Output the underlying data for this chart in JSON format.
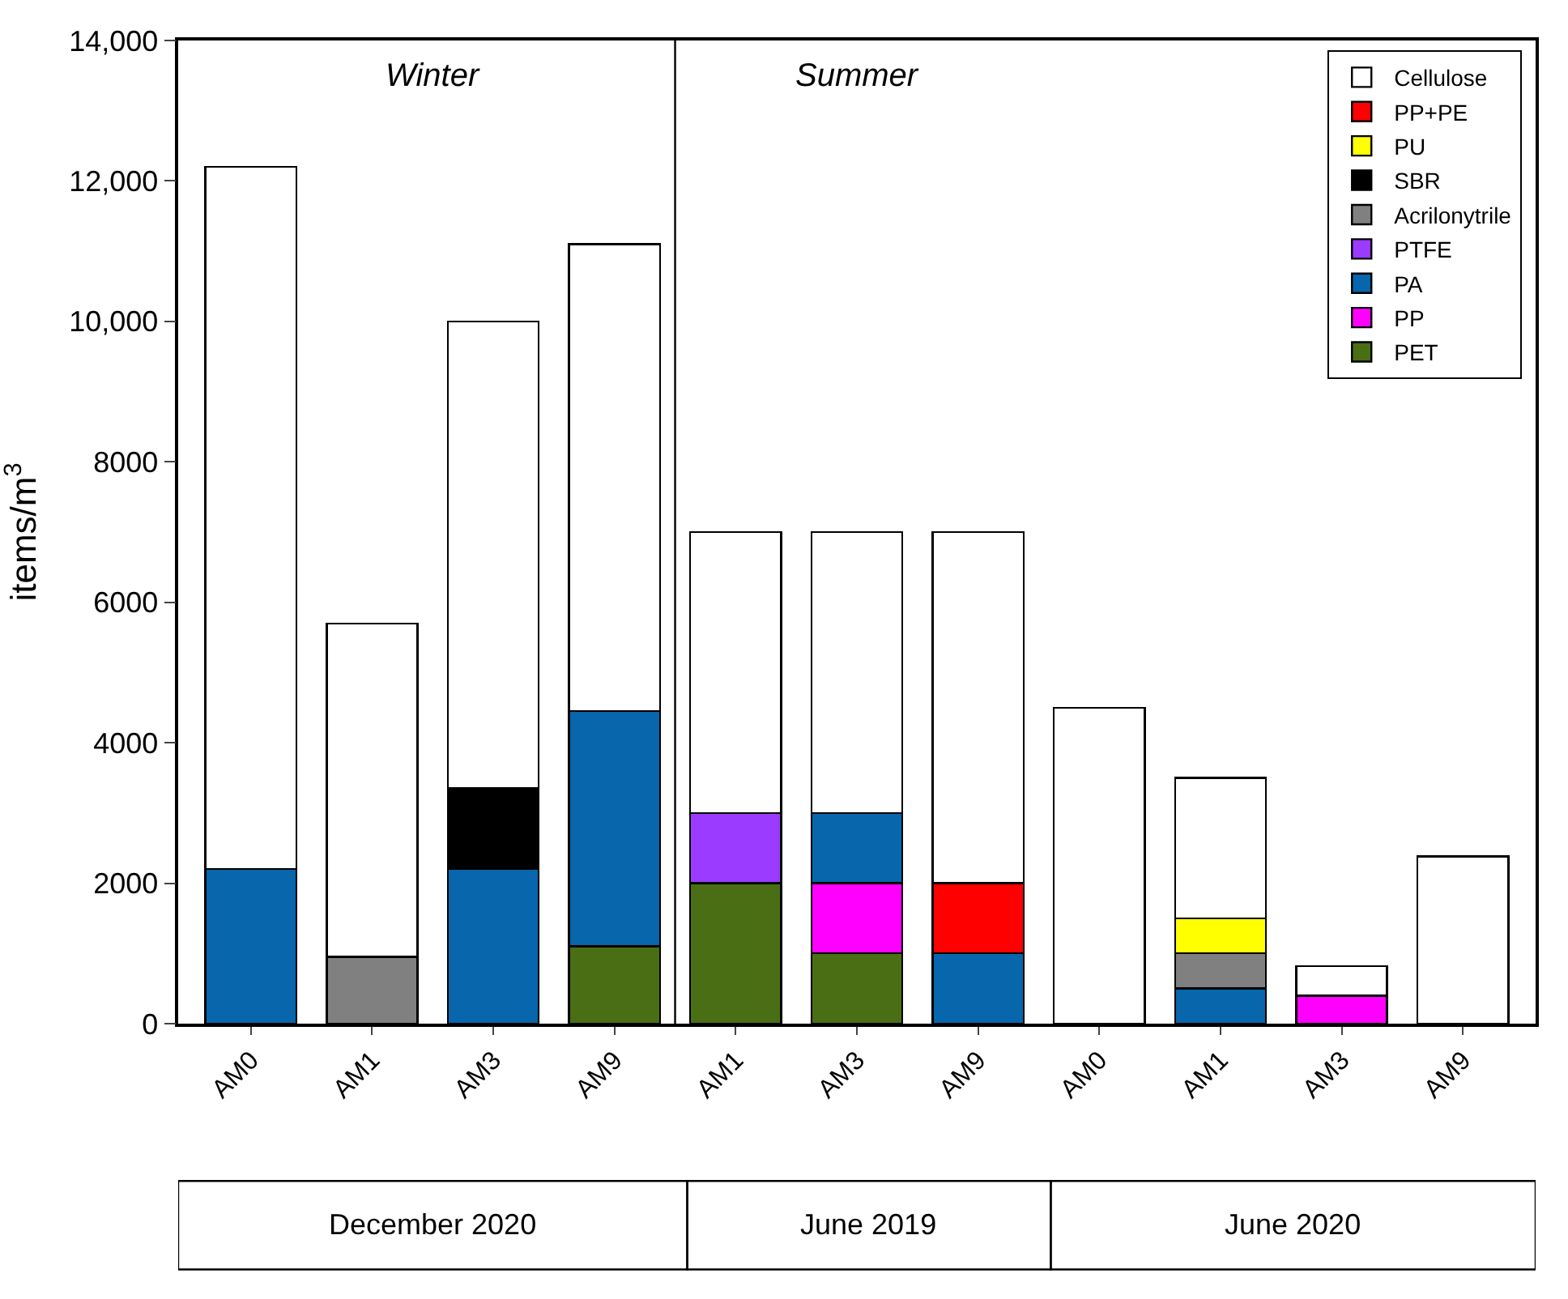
{
  "chart_data": {
    "type": "bar",
    "stacked": true,
    "ylabel": "items/m$^{3}$",
    "categories": [
      "AM0",
      "AM1",
      "AM3",
      "AM9",
      "AM1",
      "AM3",
      "AM9",
      "AM0",
      "AM1",
      "AM3",
      "AM9"
    ],
    "series": [
      {
        "name": "PET",
        "color": "#4a6e14",
        "values": [
          null,
          null,
          null,
          1100,
          2000,
          1000,
          null,
          null,
          null,
          null,
          null
        ]
      },
      {
        "name": "PP",
        "color": "#ff00ff",
        "values": [
          null,
          null,
          null,
          null,
          null,
          1000,
          null,
          null,
          null,
          400,
          null
        ]
      },
      {
        "name": "PA",
        "color": "#0766ac",
        "values": [
          2200,
          null,
          2200,
          3350,
          null,
          1000,
          1000,
          null,
          500,
          null,
          null
        ]
      },
      {
        "name": "PTFE",
        "color": "#9b3bff",
        "values": [
          null,
          null,
          null,
          null,
          1000,
          null,
          null,
          null,
          null,
          null,
          null
        ]
      },
      {
        "name": "Acrilonytrile",
        "color": "#808080",
        "values": [
          null,
          950,
          null,
          null,
          null,
          null,
          null,
          null,
          500,
          null,
          null
        ]
      },
      {
        "name": "SBR",
        "color": "#000000",
        "values": [
          null,
          null,
          1150,
          null,
          null,
          null,
          null,
          null,
          null,
          null,
          null
        ]
      },
      {
        "name": "PU",
        "color": "#ffff00",
        "values": [
          null,
          null,
          null,
          null,
          null,
          null,
          null,
          null,
          500,
          null,
          null
        ]
      },
      {
        "name": "PP+PE",
        "color": "#ff0000",
        "values": [
          null,
          null,
          null,
          null,
          null,
          null,
          1000,
          null,
          null,
          null,
          null
        ]
      },
      {
        "name": "Cellulose",
        "color": "#ffffff",
        "values": [
          10000,
          4750,
          6650,
          6650,
          4000,
          4000,
          5000,
          4500,
          2000,
          420,
          2380
        ]
      }
    ],
    "ylim": [
      0,
      14000
    ],
    "yticks": [
      0,
      2000,
      4000,
      6000,
      8000,
      {
        "value": 10000,
        "label": "10,000"
      },
      {
        "value": 12000,
        "label": "12,000"
      },
      {
        "value": 14000,
        "label": "14,000"
      }
    ],
    "annotations": [
      "Winter",
      "Summer",
      "December 2020",
      "June 2019",
      "June 2020"
    ],
    "legend": "top right"
  }
}
